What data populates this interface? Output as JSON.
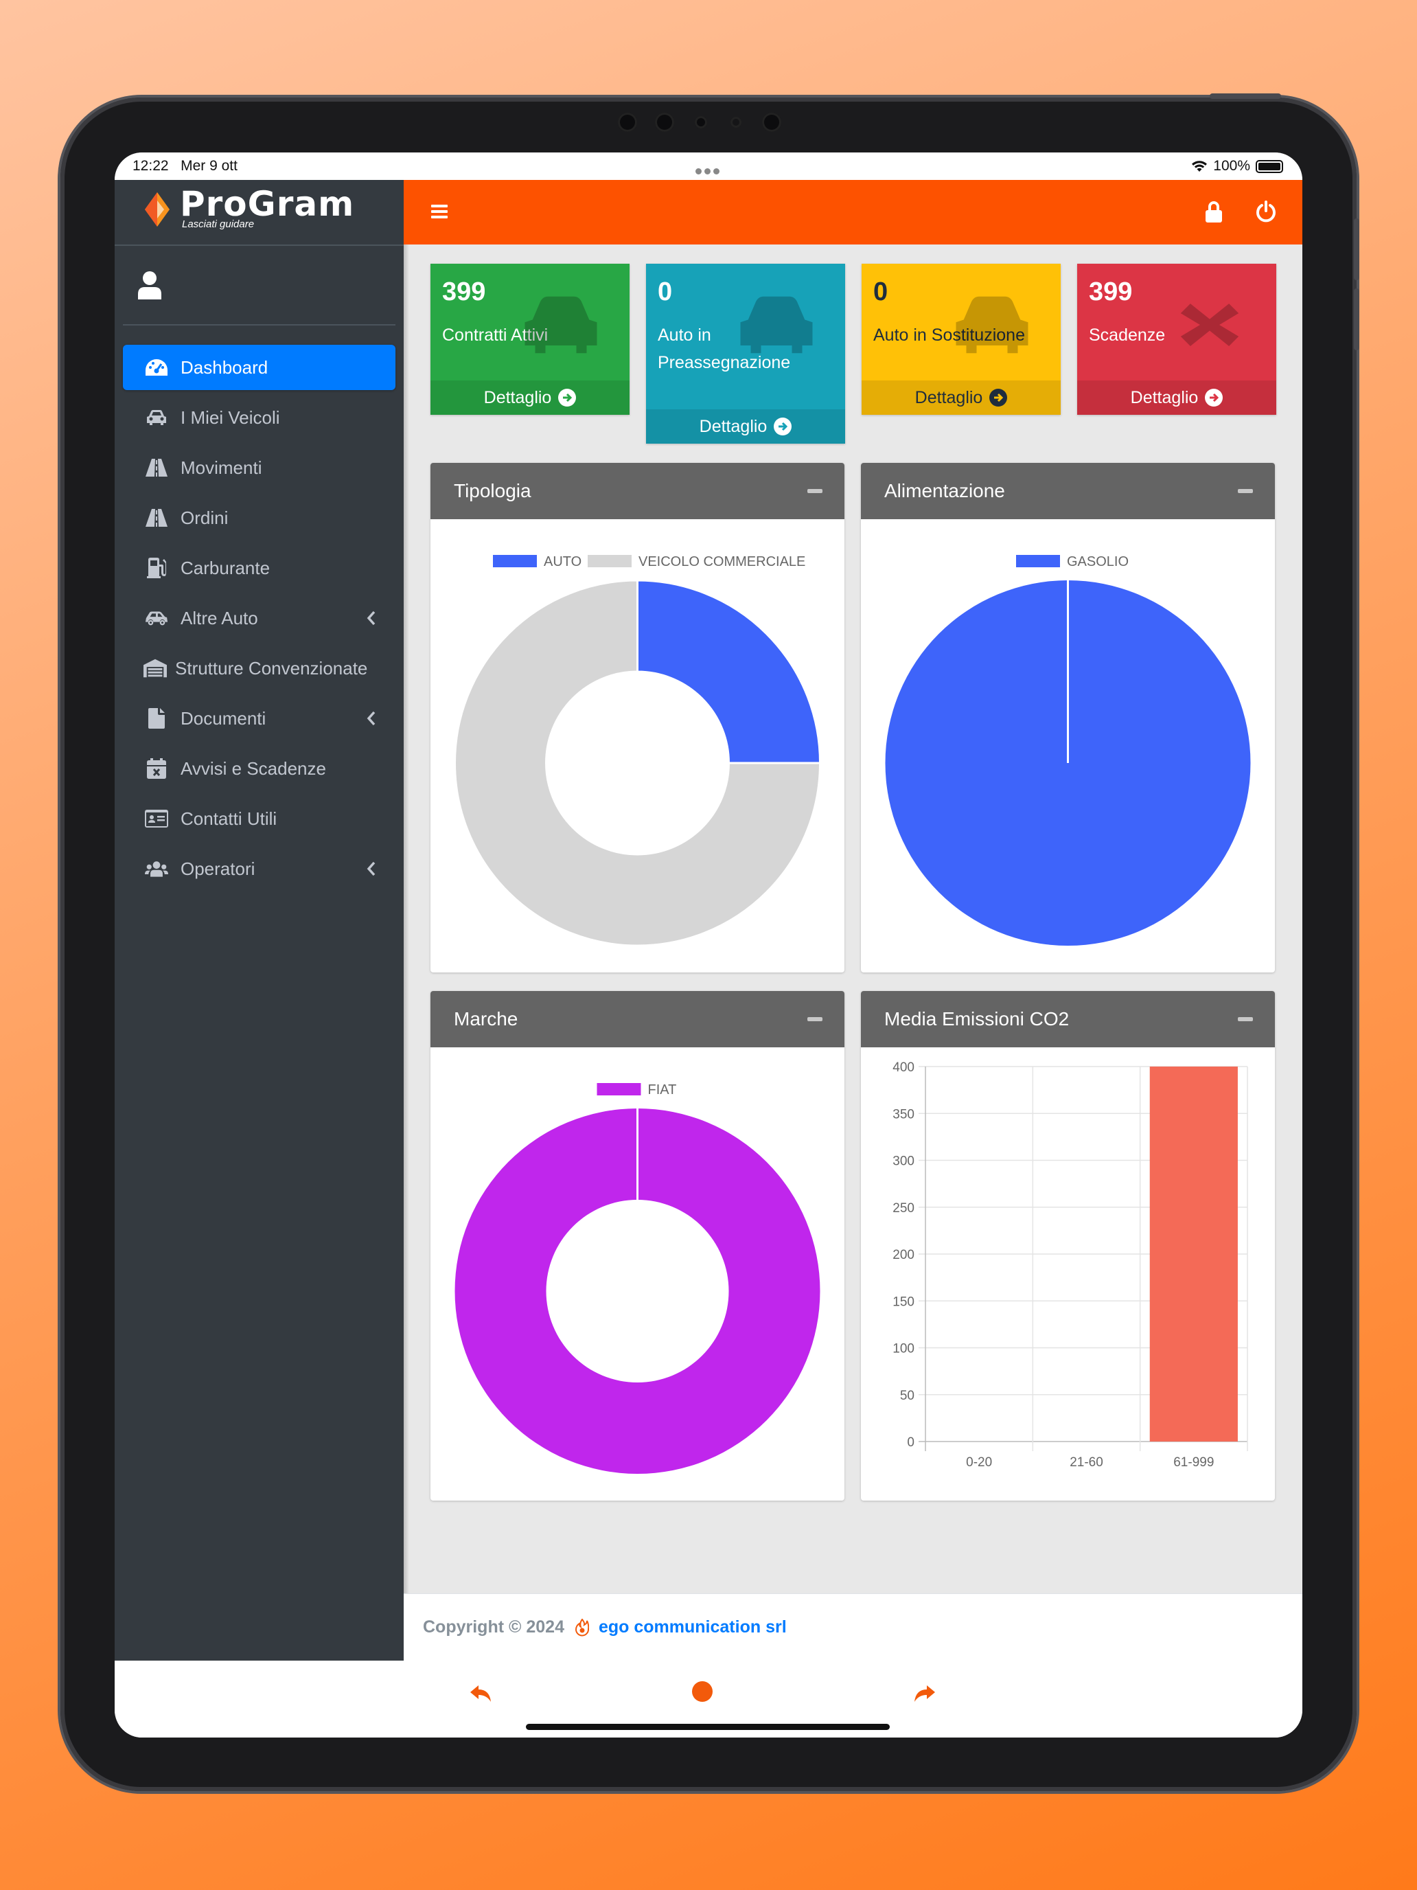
{
  "status_bar": {
    "time": "12:22",
    "date": "Mer 9 ott",
    "battery": "100%"
  },
  "brand": {
    "name": "ProGram",
    "tagline": "Lasciati guidare"
  },
  "sidebar": {
    "items": [
      {
        "label": "Dashboard",
        "icon": "tachometer-icon",
        "active": true
      },
      {
        "label": "I Miei Veicoli",
        "icon": "car-icon"
      },
      {
        "label": "Movimenti",
        "icon": "road-icon"
      },
      {
        "label": "Ordini",
        "icon": "road-icon"
      },
      {
        "label": "Carburante",
        "icon": "gas-pump-icon"
      },
      {
        "label": "Altre Auto",
        "icon": "car-side-icon",
        "has_submenu": true
      },
      {
        "label": "Strutture Convenzionate",
        "icon": "warehouse-icon"
      },
      {
        "label": "Documenti",
        "icon": "file-icon",
        "has_submenu": true
      },
      {
        "label": "Avvisi e Scadenze",
        "icon": "calendar-times-icon"
      },
      {
        "label": "Contatti Utili",
        "icon": "address-card-icon"
      },
      {
        "label": "Operatori",
        "icon": "users-icon",
        "has_submenu": true
      }
    ]
  },
  "header": {
    "menu_icon": "bars-icon",
    "lock_icon": "lock-icon",
    "power_icon": "power-icon",
    "color": "#fd5200"
  },
  "info_boxes": [
    {
      "value": "399",
      "label": "Contratti Attivi",
      "link": "Dettaglio",
      "color": "#28a745",
      "icon": "car-icon"
    },
    {
      "value": "0",
      "label": "Auto in Preassegnazione",
      "link": "Dettaglio",
      "color": "#17a2b8",
      "icon": "car-icon"
    },
    {
      "value": "0",
      "label": "Auto in Sostituzione",
      "link": "Dettaglio",
      "color": "#ffc107",
      "icon": "car-icon"
    },
    {
      "value": "399",
      "label": "Scadenze",
      "link": "Dettaglio",
      "color": "#dc3545",
      "icon": "times-icon"
    }
  ],
  "cards": {
    "tipologia": {
      "title": "Tipologia"
    },
    "alimentazione": {
      "title": "Alimentazione"
    },
    "marche": {
      "title": "Marche"
    },
    "emissioni": {
      "title": "Media Emissioni CO2"
    }
  },
  "chart_data": [
    {
      "type": "pie",
      "variant": "doughnut",
      "categories": [
        "AUTO",
        "VEICOLO COMMERCIALE"
      ],
      "values": [
        25,
        75
      ],
      "colors": [
        "#3e64fa",
        "#d6d6d6"
      ],
      "legend": "top"
    },
    {
      "type": "pie",
      "categories": [
        "GASOLIO"
      ],
      "values": [
        100
      ],
      "colors": [
        "#3e64fa"
      ],
      "legend": "top"
    },
    {
      "type": "pie",
      "variant": "doughnut",
      "categories": [
        "FIAT"
      ],
      "values": [
        100
      ],
      "colors": [
        "#c026ec"
      ],
      "legend": "top"
    },
    {
      "type": "bar",
      "categories": [
        "0-20",
        "21-60",
        "61-999"
      ],
      "values": [
        0,
        0,
        400
      ],
      "ylim": [
        0,
        400
      ],
      "yticks": [
        0,
        50,
        100,
        150,
        200,
        250,
        300,
        350,
        400
      ],
      "colors": [
        "#f46a57"
      ],
      "grid": true
    }
  ],
  "footer": {
    "copyright": "Copyright © 2024",
    "company": "ego communication srl"
  }
}
